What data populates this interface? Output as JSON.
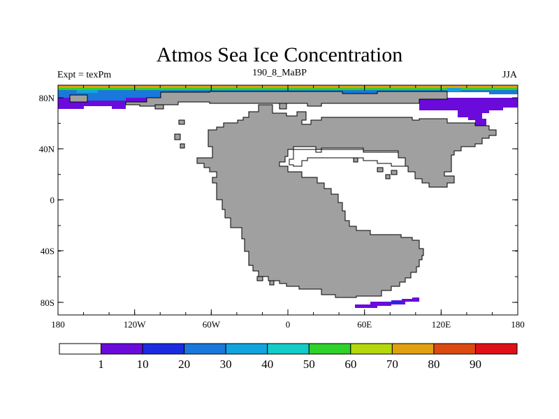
{
  "title": "Atmos Sea Ice Concentration",
  "left_label": "Expt = texPm",
  "center_label": "190_8_MaBP",
  "right_label": "JJA",
  "x_ticks": [
    "180",
    "120W",
    "60W",
    "0",
    "60E",
    "120E",
    "180"
  ],
  "y_ticks": [
    "80N",
    "40N",
    "0",
    "40S",
    "80S"
  ],
  "colorbar": {
    "labels": [
      "1",
      "10",
      "20",
      "30",
      "40",
      "50",
      "60",
      "70",
      "80",
      "90"
    ],
    "colors": [
      "#ffffff",
      "#6a0bdc",
      "#1a2be0",
      "#1a78dc",
      "#12a4e0",
      "#12ccc8",
      "#2ed22a",
      "#b4d80c",
      "#e0a010",
      "#dc4a10",
      "#e0101a"
    ]
  },
  "colors": {
    "land": "#a0a0a0",
    "ocean": "#ffffff"
  }
}
